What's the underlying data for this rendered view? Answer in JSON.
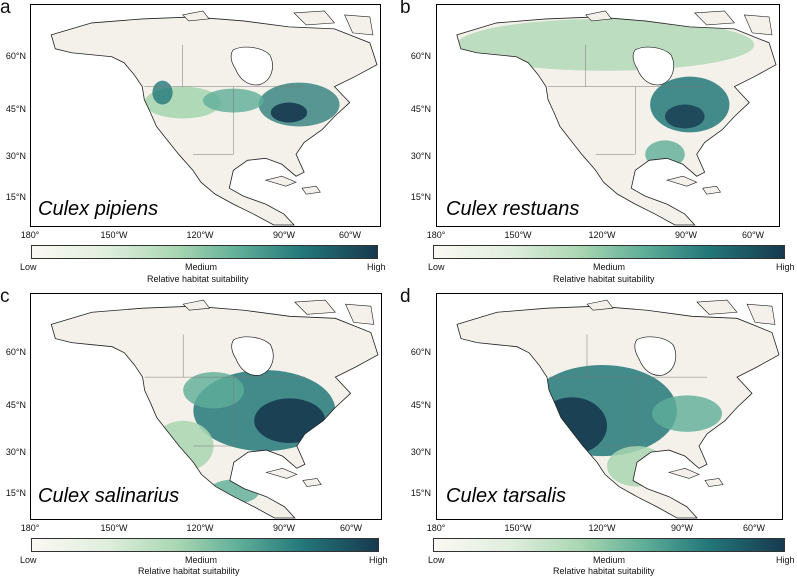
{
  "colorbar": {
    "low": "Low",
    "medium": "Medium",
    "high": "High",
    "title": "Relative habitat suitability"
  },
  "axes": {
    "lat_labels": [
      "60°N",
      "45°N",
      "30°N",
      "15°N"
    ],
    "lon_labels": [
      "180°",
      "150°W",
      "120°W",
      "90°W",
      "60°W"
    ]
  },
  "panels": [
    {
      "letter": "a",
      "species": "Culex pipiens"
    },
    {
      "letter": "b",
      "species": "Culex restuans"
    },
    {
      "letter": "c",
      "species": "Culex salinarius"
    },
    {
      "letter": "d",
      "species": "Culex tarsalis"
    }
  ],
  "colors": {
    "low": "#fbf8f3",
    "mid": "#5fae98",
    "high": "#17394f"
  }
}
